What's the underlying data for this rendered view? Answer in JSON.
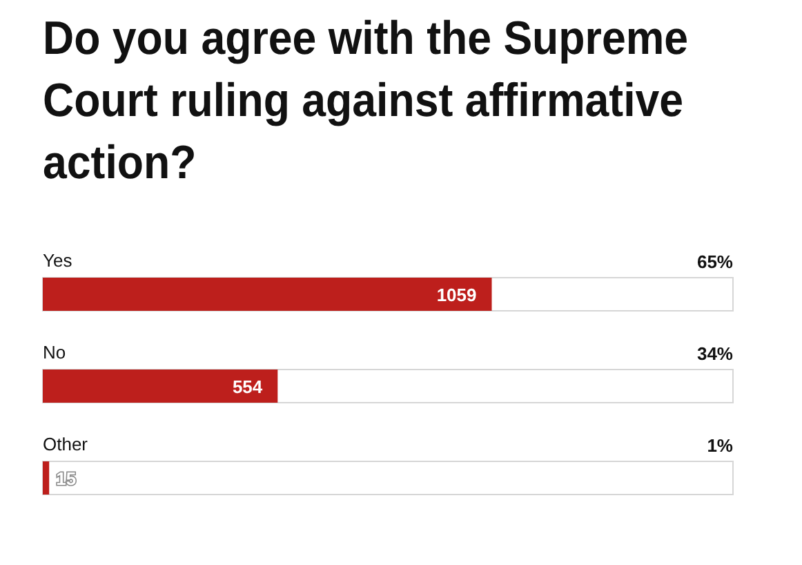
{
  "chart_data": {
    "type": "bar",
    "orientation": "horizontal",
    "title": "Do you agree with the Supreme Court ruling against affirmative action?",
    "categories": [
      "Yes",
      "No",
      "Other"
    ],
    "values": [
      1059,
      554,
      15
    ],
    "color": "#bd1f1c",
    "xlim": [
      0,
      1628
    ],
    "data_labels": true,
    "tick_labels": "y",
    "annotations": [
      "65%",
      "34%",
      "1%"
    ]
  }
}
